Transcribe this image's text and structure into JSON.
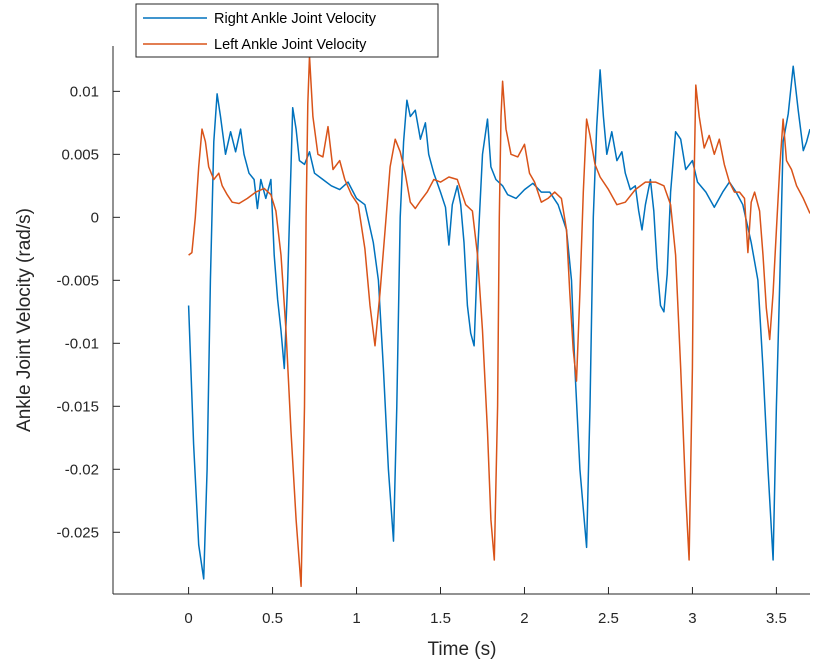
{
  "chart_data": {
    "type": "line",
    "title": "",
    "xlabel": "Time (s)",
    "ylabel": "Ankle Joint Velocity (rad/s)",
    "xlim": [
      -0.45,
      3.7
    ],
    "ylim": [
      -0.0299,
      0.0136
    ],
    "x_ticks": [
      0,
      0.5,
      1,
      1.5,
      2,
      2.5,
      3,
      3.5
    ],
    "x_tick_labels": [
      "0",
      "0.5",
      "1",
      "1.5",
      "2",
      "2.5",
      "3",
      "3.5"
    ],
    "y_ticks": [
      0.01,
      0.005,
      0,
      -0.005,
      -0.01,
      -0.015,
      -0.02,
      -0.025
    ],
    "y_tick_labels": [
      "0.01",
      "0.005",
      "0",
      "-0.005",
      "-0.01",
      "-0.015",
      "-0.02",
      "-0.025"
    ],
    "grid": false,
    "legend_position": "top-left",
    "series": [
      {
        "name": "Right Ankle Joint Velocity",
        "color": "#0072BD",
        "points": [
          [
            0.0,
            -0.007
          ],
          [
            0.03,
            -0.018
          ],
          [
            0.06,
            -0.026
          ],
          [
            0.09,
            -0.0287
          ],
          [
            0.11,
            -0.02
          ],
          [
            0.13,
            -0.005
          ],
          [
            0.15,
            0.006
          ],
          [
            0.17,
            0.0098
          ],
          [
            0.19,
            0.008
          ],
          [
            0.22,
            0.005
          ],
          [
            0.25,
            0.0068
          ],
          [
            0.28,
            0.0052
          ],
          [
            0.31,
            0.007
          ],
          [
            0.33,
            0.005
          ],
          [
            0.36,
            0.0035
          ],
          [
            0.39,
            0.003
          ],
          [
            0.41,
            0.0007
          ],
          [
            0.43,
            0.003
          ],
          [
            0.46,
            0.0015
          ],
          [
            0.49,
            0.003
          ],
          [
            0.51,
            -0.003
          ],
          [
            0.53,
            -0.0065
          ],
          [
            0.55,
            -0.009
          ],
          [
            0.57,
            -0.012
          ],
          [
            0.59,
            -0.005
          ],
          [
            0.61,
            0.004
          ],
          [
            0.62,
            0.0087
          ],
          [
            0.64,
            0.007
          ],
          [
            0.66,
            0.0045
          ],
          [
            0.69,
            0.0042
          ],
          [
            0.72,
            0.0052
          ],
          [
            0.75,
            0.0035
          ],
          [
            0.8,
            0.003
          ],
          [
            0.85,
            0.0025
          ],
          [
            0.9,
            0.0022
          ],
          [
            0.95,
            0.0028
          ],
          [
            1.0,
            0.0015
          ],
          [
            1.05,
            0.001
          ],
          [
            1.1,
            -0.002
          ],
          [
            1.13,
            -0.005
          ],
          [
            1.16,
            -0.012
          ],
          [
            1.19,
            -0.02
          ],
          [
            1.22,
            -0.0257
          ],
          [
            1.24,
            -0.015
          ],
          [
            1.26,
            0.0
          ],
          [
            1.28,
            0.006
          ],
          [
            1.3,
            0.0093
          ],
          [
            1.32,
            0.008
          ],
          [
            1.35,
            0.0085
          ],
          [
            1.38,
            0.0062
          ],
          [
            1.41,
            0.0075
          ],
          [
            1.43,
            0.005
          ],
          [
            1.46,
            0.0035
          ],
          [
            1.5,
            0.002
          ],
          [
            1.53,
            0.0008
          ],
          [
            1.55,
            -0.0022
          ],
          [
            1.57,
            0.001
          ],
          [
            1.6,
            0.0025
          ],
          [
            1.62,
            0.001
          ],
          [
            1.64,
            -0.002
          ],
          [
            1.66,
            -0.007
          ],
          [
            1.68,
            -0.0092
          ],
          [
            1.7,
            -0.0102
          ],
          [
            1.72,
            -0.003
          ],
          [
            1.75,
            0.005
          ],
          [
            1.78,
            0.0078
          ],
          [
            1.8,
            0.004
          ],
          [
            1.83,
            0.003
          ],
          [
            1.87,
            0.0025
          ],
          [
            1.9,
            0.0018
          ],
          [
            1.95,
            0.0015
          ],
          [
            2.0,
            0.0022
          ],
          [
            2.05,
            0.0027
          ],
          [
            2.1,
            0.002
          ],
          [
            2.15,
            0.002
          ],
          [
            2.2,
            0.001
          ],
          [
            2.25,
            -0.001
          ],
          [
            2.28,
            -0.005
          ],
          [
            2.3,
            -0.012
          ],
          [
            2.33,
            -0.02
          ],
          [
            2.37,
            -0.0262
          ],
          [
            2.39,
            -0.015
          ],
          [
            2.41,
            0.0
          ],
          [
            2.43,
            0.0072
          ],
          [
            2.45,
            0.0117
          ],
          [
            2.47,
            0.008
          ],
          [
            2.49,
            0.005
          ],
          [
            2.52,
            0.0068
          ],
          [
            2.55,
            0.0045
          ],
          [
            2.58,
            0.0052
          ],
          [
            2.6,
            0.0035
          ],
          [
            2.63,
            0.0022
          ],
          [
            2.66,
            0.0025
          ],
          [
            2.68,
            0.0005
          ],
          [
            2.7,
            -0.001
          ],
          [
            2.72,
            0.001
          ],
          [
            2.75,
            0.003
          ],
          [
            2.77,
            0.0005
          ],
          [
            2.79,
            -0.004
          ],
          [
            2.81,
            -0.007
          ],
          [
            2.83,
            -0.0075
          ],
          [
            2.85,
            -0.0045
          ],
          [
            2.87,
            0.002
          ],
          [
            2.9,
            0.0068
          ],
          [
            2.93,
            0.0062
          ],
          [
            2.96,
            0.0038
          ],
          [
            3.0,
            0.0045
          ],
          [
            3.03,
            0.0028
          ],
          [
            3.08,
            0.002
          ],
          [
            3.13,
            0.0008
          ],
          [
            3.18,
            0.002
          ],
          [
            3.22,
            0.0028
          ],
          [
            3.26,
            0.002
          ],
          [
            3.3,
            0.001
          ],
          [
            3.35,
            -0.002
          ],
          [
            3.39,
            -0.005
          ],
          [
            3.42,
            -0.012
          ],
          [
            3.45,
            -0.02
          ],
          [
            3.48,
            -0.0272
          ],
          [
            3.5,
            -0.015
          ],
          [
            3.52,
            -0.005
          ],
          [
            3.54,
            0.006
          ],
          [
            3.57,
            0.0082
          ],
          [
            3.6,
            0.012
          ],
          [
            3.63,
            0.0085
          ],
          [
            3.66,
            0.0053
          ],
          [
            3.68,
            0.006
          ],
          [
            3.7,
            0.007
          ]
        ]
      },
      {
        "name": "Left Ankle Joint Velocity",
        "color": "#D95319",
        "points": [
          [
            0.0,
            -0.003
          ],
          [
            0.02,
            -0.0028
          ],
          [
            0.04,
            0.0
          ],
          [
            0.06,
            0.004
          ],
          [
            0.08,
            0.007
          ],
          [
            0.1,
            0.006
          ],
          [
            0.12,
            0.004
          ],
          [
            0.15,
            0.003
          ],
          [
            0.18,
            0.0035
          ],
          [
            0.2,
            0.0025
          ],
          [
            0.23,
            0.0018
          ],
          [
            0.26,
            0.0012
          ],
          [
            0.3,
            0.0011
          ],
          [
            0.35,
            0.0015
          ],
          [
            0.4,
            0.002
          ],
          [
            0.45,
            0.0023
          ],
          [
            0.49,
            0.0018
          ],
          [
            0.52,
            0.0005
          ],
          [
            0.55,
            -0.003
          ],
          [
            0.58,
            -0.009
          ],
          [
            0.61,
            -0.017
          ],
          [
            0.64,
            -0.024
          ],
          [
            0.67,
            -0.0293
          ],
          [
            0.69,
            -0.015
          ],
          [
            0.7,
            0.0
          ],
          [
            0.71,
            0.009
          ],
          [
            0.72,
            0.0128
          ],
          [
            0.74,
            0.008
          ],
          [
            0.77,
            0.005
          ],
          [
            0.8,
            0.0048
          ],
          [
            0.83,
            0.0072
          ],
          [
            0.86,
            0.0038
          ],
          [
            0.9,
            0.0045
          ],
          [
            0.93,
            0.003
          ],
          [
            0.97,
            0.0018
          ],
          [
            1.01,
            0.001
          ],
          [
            1.05,
            -0.0025
          ],
          [
            1.08,
            -0.007
          ],
          [
            1.11,
            -0.0102
          ],
          [
            1.14,
            -0.006
          ],
          [
            1.17,
            -0.001
          ],
          [
            1.2,
            0.004
          ],
          [
            1.23,
            0.0062
          ],
          [
            1.26,
            0.0052
          ],
          [
            1.29,
            0.0035
          ],
          [
            1.32,
            0.0012
          ],
          [
            1.35,
            0.0007
          ],
          [
            1.38,
            0.0013
          ],
          [
            1.42,
            0.002
          ],
          [
            1.46,
            0.003
          ],
          [
            1.5,
            0.0028
          ],
          [
            1.55,
            0.0032
          ],
          [
            1.6,
            0.003
          ],
          [
            1.65,
            0.001
          ],
          [
            1.69,
            0.0005
          ],
          [
            1.72,
            -0.003
          ],
          [
            1.75,
            -0.009
          ],
          [
            1.78,
            -0.017
          ],
          [
            1.8,
            -0.024
          ],
          [
            1.82,
            -0.0272
          ],
          [
            1.84,
            -0.015
          ],
          [
            1.85,
            0.0
          ],
          [
            1.86,
            0.008
          ],
          [
            1.87,
            0.0108
          ],
          [
            1.89,
            0.007
          ],
          [
            1.92,
            0.005
          ],
          [
            1.96,
            0.0048
          ],
          [
            2.0,
            0.0058
          ],
          [
            2.03,
            0.0035
          ],
          [
            2.06,
            0.0028
          ],
          [
            2.1,
            0.0012
          ],
          [
            2.14,
            0.0015
          ],
          [
            2.18,
            0.002
          ],
          [
            2.22,
            0.0015
          ],
          [
            2.25,
            -0.001
          ],
          [
            2.27,
            -0.006
          ],
          [
            2.29,
            -0.0105
          ],
          [
            2.31,
            -0.013
          ],
          [
            2.33,
            -0.006
          ],
          [
            2.35,
            0.002
          ],
          [
            2.37,
            0.0078
          ],
          [
            2.39,
            0.0065
          ],
          [
            2.42,
            0.0042
          ],
          [
            2.45,
            0.0032
          ],
          [
            2.5,
            0.0022
          ],
          [
            2.55,
            0.001
          ],
          [
            2.6,
            0.0012
          ],
          [
            2.66,
            0.0022
          ],
          [
            2.72,
            0.0028
          ],
          [
            2.78,
            0.0028
          ],
          [
            2.83,
            0.0025
          ],
          [
            2.87,
            0.001
          ],
          [
            2.9,
            -0.003
          ],
          [
            2.93,
            -0.012
          ],
          [
            2.96,
            -0.022
          ],
          [
            2.98,
            -0.0272
          ],
          [
            3.0,
            -0.012
          ],
          [
            3.01,
            0.003
          ],
          [
            3.02,
            0.0105
          ],
          [
            3.04,
            0.008
          ],
          [
            3.07,
            0.0055
          ],
          [
            3.1,
            0.0065
          ],
          [
            3.13,
            0.005
          ],
          [
            3.16,
            0.0062
          ],
          [
            3.19,
            0.0042
          ],
          [
            3.22,
            0.0028
          ],
          [
            3.25,
            0.002
          ],
          [
            3.28,
            0.002
          ],
          [
            3.31,
            0.0015
          ],
          [
            3.33,
            -0.0028
          ],
          [
            3.35,
            0.0012
          ],
          [
            3.37,
            0.002
          ],
          [
            3.4,
            0.0005
          ],
          [
            3.42,
            -0.003
          ],
          [
            3.44,
            -0.0072
          ],
          [
            3.46,
            -0.0097
          ],
          [
            3.48,
            -0.006
          ],
          [
            3.5,
            -0.001
          ],
          [
            3.52,
            0.004
          ],
          [
            3.54,
            0.0078
          ],
          [
            3.56,
            0.0045
          ],
          [
            3.59,
            0.0038
          ],
          [
            3.62,
            0.0025
          ],
          [
            3.66,
            0.0015
          ],
          [
            3.7,
            0.0003
          ]
        ]
      }
    ]
  }
}
